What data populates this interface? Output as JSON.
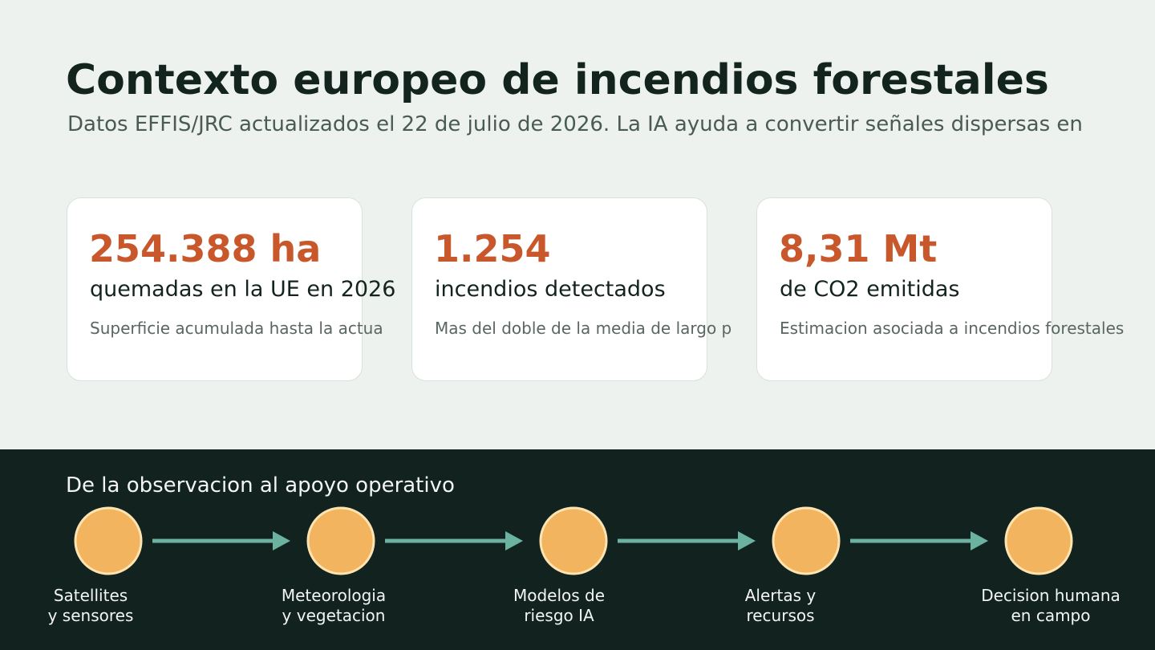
{
  "header": {
    "title": "Contexto europeo de incendios forestales",
    "subtitle": "Datos EFFIS/JRC actualizados el 22 de julio de 2026. La IA ayuda a convertir señales dispersas en"
  },
  "cards": [
    {
      "value": "254.388 ha",
      "label": "quemadas en la UE en 2026",
      "note": "Superficie acumulada hasta la actua"
    },
    {
      "value": "1.254",
      "label": "incendios detectados",
      "note": "Mas del doble de la media de largo p"
    },
    {
      "value": "8,31 Mt",
      "label": "de CO2 emitidas",
      "note": "Estimacion asociada a incendios forestales"
    }
  ],
  "pipeline": {
    "title": "De la observacion al apoyo operativo",
    "steps": [
      {
        "lines": [
          "Satellites",
          "y sensores"
        ]
      },
      {
        "lines": [
          "Meteorologia",
          "y vegetacion"
        ]
      },
      {
        "lines": [
          "Modelos de",
          "riesgo IA"
        ]
      },
      {
        "lines": [
          "Alertas y",
          "recursos"
        ]
      },
      {
        "lines": [
          "Decision humana",
          "en campo"
        ]
      }
    ]
  }
}
